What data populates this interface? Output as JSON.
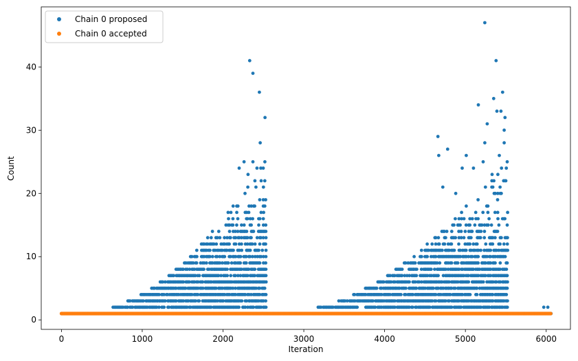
{
  "chart_data": {
    "type": "scatter",
    "title": "",
    "xlabel": "Iteration",
    "ylabel": "Count",
    "xlim": [
      -250,
      6300
    ],
    "ylim": [
      -1.5,
      49.5
    ],
    "xticks": [
      0,
      1000,
      2000,
      3000,
      4000,
      5000,
      6000
    ],
    "yticks": [
      0,
      10,
      20,
      30,
      40
    ],
    "legend_position": "top-left",
    "grid": false,
    "series": [
      {
        "name": "Chain 0 proposed",
        "color": "#1f77b4",
        "generator": {
          "baseline_value": 1,
          "x_range": [
            0,
            6060
          ],
          "x_step": 15,
          "clusters": [
            {
              "x_start": 640,
              "x_end": 2530,
              "base": 2,
              "peak_max": 25
            },
            {
              "x_start": 3180,
              "x_end": 5520,
              "base": 2,
              "peak_max": 25
            }
          ],
          "tail_points": [
            [
              5970,
              2
            ],
            [
              6020,
              2
            ]
          ]
        },
        "notable_points": [
          [
            2330,
            41
          ],
          [
            2370,
            39
          ],
          [
            2450,
            36
          ],
          [
            2520,
            32
          ],
          [
            2460,
            28
          ],
          [
            2260,
            25
          ],
          [
            2370,
            25
          ],
          [
            2420,
            24
          ],
          [
            2200,
            24
          ],
          [
            2310,
            23
          ],
          [
            5240,
            47
          ],
          [
            5380,
            41
          ],
          [
            5460,
            36
          ],
          [
            5350,
            35
          ],
          [
            5390,
            33
          ],
          [
            5160,
            34
          ],
          [
            5440,
            33
          ],
          [
            5490,
            32
          ],
          [
            5270,
            31
          ],
          [
            5480,
            30
          ],
          [
            4660,
            29
          ],
          [
            4670,
            26
          ],
          [
            4780,
            27
          ],
          [
            5240,
            28
          ],
          [
            5480,
            28
          ],
          [
            5010,
            26
          ],
          [
            5420,
            26
          ],
          [
            4960,
            24
          ],
          [
            5100,
            24
          ],
          [
            5220,
            25
          ],
          [
            5330,
            23
          ],
          [
            4720,
            21
          ],
          [
            4880,
            20
          ],
          [
            5500,
            22
          ]
        ]
      },
      {
        "name": "Chain 0 accepted",
        "color": "#ff7f0e",
        "generator": {
          "value": 1,
          "x_range": [
            0,
            6060
          ],
          "x_step": 8
        }
      }
    ]
  }
}
